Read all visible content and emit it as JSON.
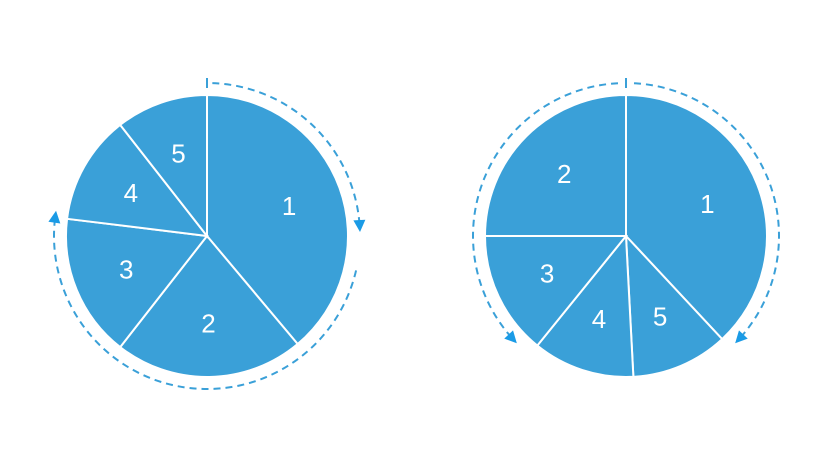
{
  "colors": {
    "slice": "#3aa0d8",
    "ring": "#3aa0d8",
    "arrow": "#1a9be6",
    "background": "#ffffff"
  },
  "diagrams": [
    {
      "name": "pie-clockwise",
      "direction": "clockwise",
      "slices": [
        {
          "label": "1",
          "start_deg": 0,
          "end_deg": 140
        },
        {
          "label": "2",
          "start_deg": 140,
          "end_deg": 218
        },
        {
          "label": "3",
          "start_deg": 218,
          "end_deg": 277
        },
        {
          "label": "4",
          "start_deg": 277,
          "end_deg": 322
        },
        {
          "label": "5",
          "start_deg": 322,
          "end_deg": 360
        }
      ],
      "ring_span_deg": [
        2,
        85,
        103,
        278
      ]
    },
    {
      "name": "pie-split-direction",
      "direction": "both",
      "slices": [
        {
          "label": "1",
          "start_deg": 0,
          "end_deg": 137
        },
        {
          "label": "5",
          "start_deg": 137,
          "end_deg": 177
        },
        {
          "label": "4",
          "start_deg": 177,
          "end_deg": 219
        },
        {
          "label": "3",
          "start_deg": 219,
          "end_deg": 270
        },
        {
          "label": "2",
          "start_deg": 270,
          "end_deg": 360
        }
      ],
      "ring_span_deg": [
        3,
        133,
        227,
        357
      ]
    }
  ]
}
